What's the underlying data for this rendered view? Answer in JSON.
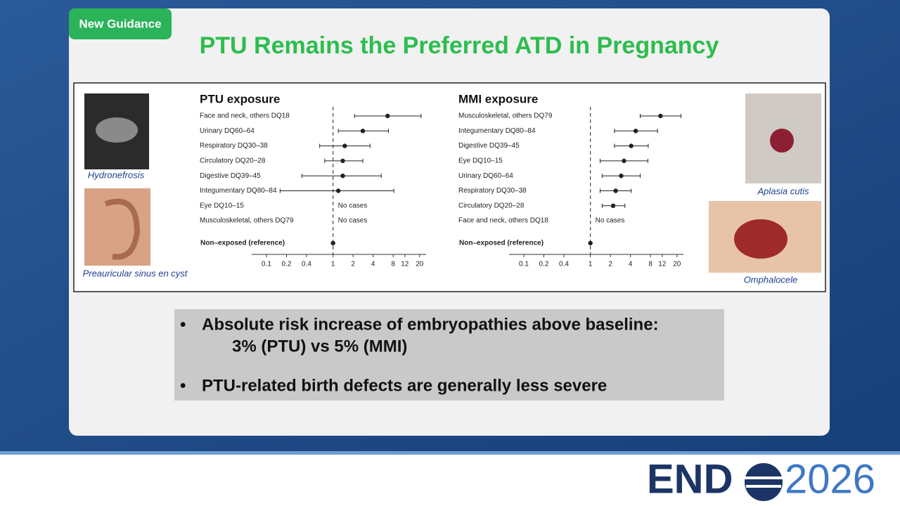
{
  "badge": "New Guidance",
  "title": "PTU Remains the Preferred ATD in Pregnancy",
  "images": {
    "left": [
      "Hydronefrosis",
      "Preauricular sinus en cyst"
    ],
    "right": [
      "Aplasia cutis",
      "Omphalocele"
    ]
  },
  "bullets": [
    [
      "Absolute risk increase of embryopathies above baseline:",
      "3% (PTU) vs 5% (MMI)"
    ],
    [
      "PTU-related birth defects are generally less severe"
    ]
  ],
  "logo": {
    "left": "END",
    "right": "2026"
  },
  "chart_data": [
    {
      "type": "forest",
      "title": "PTU exposure",
      "categories": [
        "Face and neck, others DQ18",
        "Urinary DQ60–64",
        "Respiratory DQ30–38",
        "Circulatory DQ20–28",
        "Digestive DQ39–45",
        "Integumentary DQ80–84",
        "Eye DQ10–15",
        "Musculoskeletal, others DQ79",
        "Non–exposed (reference)"
      ],
      "values": [
        6.6,
        2.8,
        1.5,
        1.4,
        1.4,
        1.2,
        null,
        null,
        1
      ],
      "lower": [
        2.1,
        1.2,
        0.63,
        0.75,
        0.34,
        0.16,
        null,
        null,
        null
      ],
      "upper": [
        21,
        6.8,
        3.6,
        2.8,
        5.3,
        8.2,
        null,
        null,
        null
      ],
      "notes": [
        null,
        null,
        null,
        null,
        null,
        null,
        "No cases",
        "No cases",
        null
      ],
      "xlim": [
        0.06,
        25
      ],
      "xticks": [
        0.1,
        0.2,
        0.4,
        1,
        2,
        4,
        8,
        12,
        20
      ],
      "log_x": true,
      "color": "#222222"
    },
    {
      "type": "forest",
      "title": "MMI exposure",
      "categories": [
        "Musculoskeletal, others DQ79",
        "Integumentary DQ80–84",
        "Digestive DQ39–45",
        "Eye DQ10–15",
        "Urinary DQ60–64",
        "Respiratory DQ30–38",
        "Circulatory DQ20–28",
        "Face and neck, others DQ18",
        "Non–exposed (reference)"
      ],
      "values": [
        11.3,
        4.8,
        4.1,
        3.2,
        2.9,
        2.4,
        2.2,
        null,
        1
      ],
      "lower": [
        5.6,
        2.3,
        2.3,
        1.4,
        1.5,
        1.4,
        1.5,
        null,
        null
      ],
      "upper": [
        23,
        10.2,
        7.4,
        7.3,
        5.6,
        4.1,
        3.3,
        null,
        null
      ],
      "notes": [
        null,
        null,
        null,
        null,
        null,
        null,
        null,
        "No cases",
        null
      ],
      "xlim": [
        0.06,
        25
      ],
      "xticks": [
        0.1,
        0.2,
        0.4,
        1,
        2,
        4,
        8,
        12,
        20
      ],
      "log_x": true,
      "color": "#222222"
    }
  ]
}
